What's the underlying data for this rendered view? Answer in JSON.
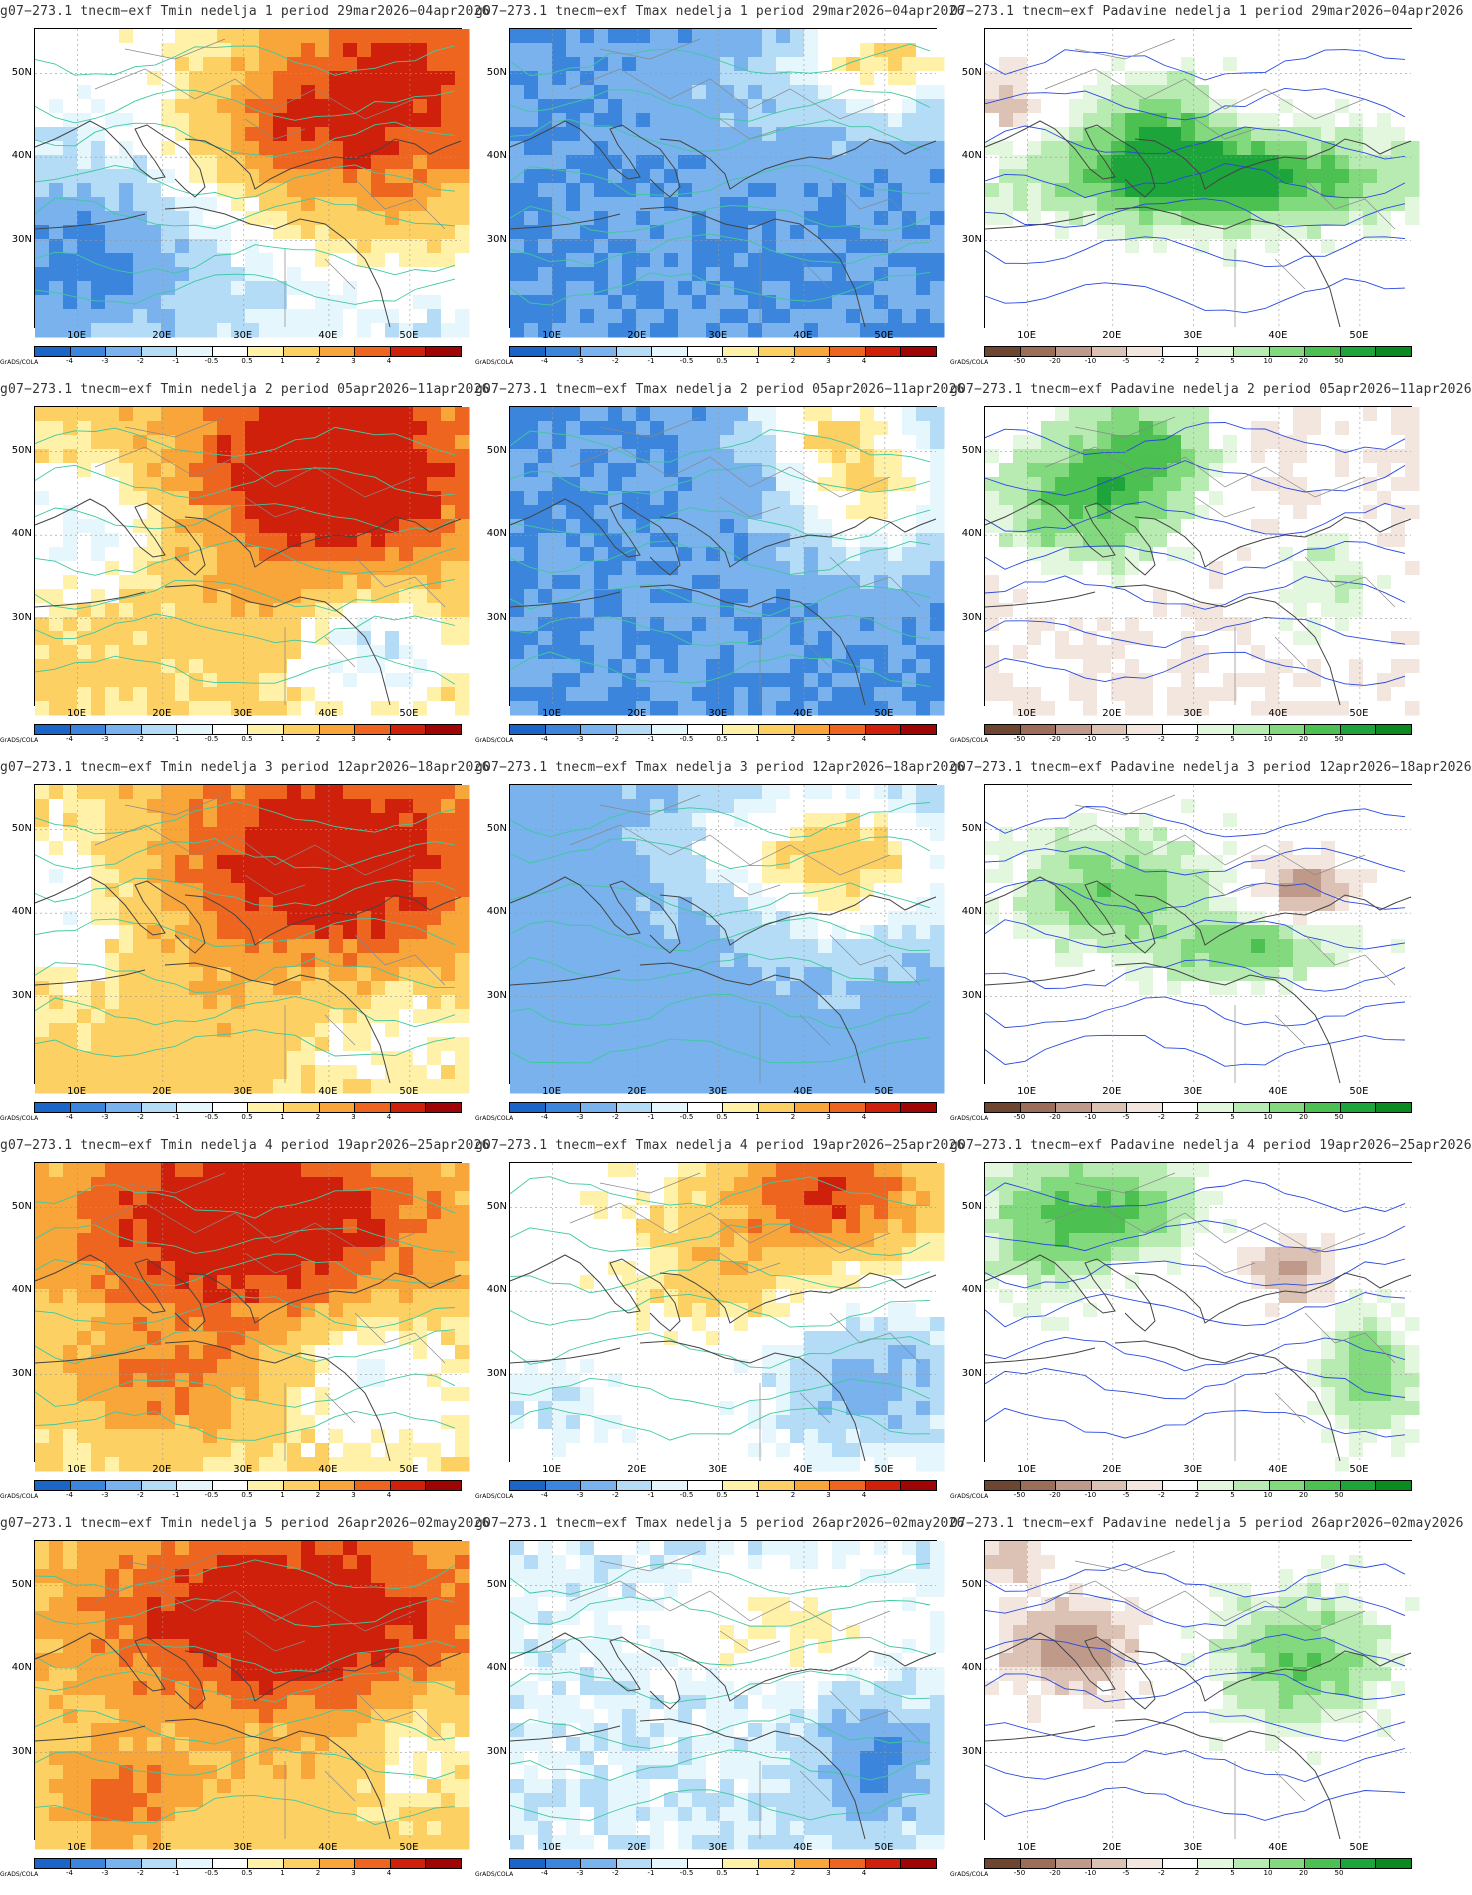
{
  "colors": {
    "tmin_tmax_scale": [
      "#1c65c8",
      "#3b86dc",
      "#79b2ec",
      "#b4dcf6",
      "#e6f6fd",
      "#ffffff",
      "#fff2a8",
      "#fcd062",
      "#f8a53a",
      "#ee6520",
      "#cf200b",
      "#a00505"
    ],
    "precip_scale": [
      "#6e4531",
      "#9c6e5a",
      "#bf9a8a",
      "#dcc2b5",
      "#f2e6df",
      "#ffffff",
      "#e3f7df",
      "#b8ebb2",
      "#83d97e",
      "#4cc050",
      "#1da43a",
      "#0c8a22"
    ],
    "contour_temp": "#3fc8a0",
    "contour_precip": "#2848e0"
  },
  "lat_labels": [
    "50N",
    "40N",
    "30N"
  ],
  "lon_labels": [
    "10E",
    "20E",
    "30E",
    "40E",
    "50E"
  ],
  "grads_label": "GrADS/COLA",
  "temp_scale_labels": [
    "-4",
    "-3",
    "-2",
    "-1",
    "-0.5",
    "0.5",
    "1",
    "2",
    "3",
    "4"
  ],
  "precip_scale_labels": [
    "-50",
    "-20",
    "-10",
    "-5",
    "-2",
    "2",
    "5",
    "10",
    "20",
    "50"
  ],
  "panels": [
    {
      "title": "g07−273.1  tnecm−exf  Tmin  nedelja  1  period  29mar2026−04apr2026",
      "kind": "temp",
      "theme": "tmin1"
    },
    {
      "title": "g07−273.1  tnecm−exf  Tmax  nedelja  1  period  29mar2026−04apr2026",
      "kind": "temp",
      "theme": "tmax1"
    },
    {
      "title": "07−273.1  tnecm−exf  Padavine  nedelja  1  period  29mar2026−04apr2026",
      "kind": "precip",
      "theme": "pr1"
    },
    {
      "title": "g07−273.1  tnecm−exf  Tmin  nedelja  2  period  05apr2026−11apr2026",
      "kind": "temp",
      "theme": "tmin2"
    },
    {
      "title": "g07−273.1  tnecm−exf  Tmax  nedelja  2  period  05apr2026−11apr2026",
      "kind": "temp",
      "theme": "tmax2"
    },
    {
      "title": "g07−273.1  tnecm−exf  Padavine  nedelja  2  period  05apr2026−11apr2026",
      "kind": "precip",
      "theme": "pr2"
    },
    {
      "title": "g07−273.1  tnecm−exf  Tmin  nedelja  3  period  12apr2026−18apr2026",
      "kind": "temp",
      "theme": "tmin3"
    },
    {
      "title": "g07−273.1  tnecm−exf  Tmax  nedelja  3  period  12apr2026−18apr2026",
      "kind": "temp",
      "theme": "tmax3"
    },
    {
      "title": "g07−273.1  tnecm−exf  Padavine  nedelja  3  period  12apr2026−18apr2026",
      "kind": "precip",
      "theme": "pr3"
    },
    {
      "title": "g07−273.1  tnecm−exf  Tmin  nedelja  4  period  19apr2026−25apr2026",
      "kind": "temp",
      "theme": "tmin4"
    },
    {
      "title": "g07−273.1  tnecm−exf  Tmax  nedelja  4  period  19apr2026−25apr2026",
      "kind": "temp",
      "theme": "tmax4"
    },
    {
      "title": "g07−273.1  tnecm−exf  Padavine  nedelja  4  period  19apr2026−25apr2026",
      "kind": "precip",
      "theme": "pr4"
    },
    {
      "title": "g07−273.1  tnecm−exf  Tmin  nedelja  5  period  26apr2026−02may2026",
      "kind": "temp",
      "theme": "tmin5"
    },
    {
      "title": "g07−273.1  tnecm−exf  Tmax  nedelja  5  period  26apr2026−02may2026",
      "kind": "temp",
      "theme": "tmax5"
    },
    {
      "title": "07−273.1  tnecm−exf  Padavine  nedelja  5  period  26apr2026−02may2026",
      "kind": "precip",
      "theme": "pr5"
    }
  ]
}
